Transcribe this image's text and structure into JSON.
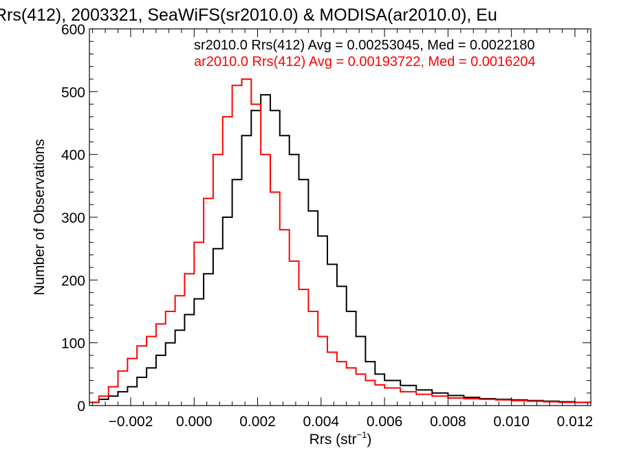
{
  "chart_data": {
    "type": "line",
    "title": "Rrs(412), 2003321, SeaWiFS(sr2010.0) & MODISA(ar2010.0), Eu",
    "xlabel_main": "Rrs (str",
    "xlabel_sup": "−1",
    "xlabel_tail": ")",
    "ylabel": "Number of Observations",
    "xlim": [
      -0.0033,
      0.0125
    ],
    "ylim": [
      0,
      600
    ],
    "xticks": [
      -0.002,
      0.0,
      0.002,
      0.004,
      0.006,
      0.008,
      0.01,
      0.012
    ],
    "xtick_labels": [
      "−0.002",
      "0.000",
      "0.002",
      "0.004",
      "0.006",
      "0.008",
      "0.010",
      "0.012"
    ],
    "yticks": [
      0,
      100,
      200,
      300,
      400,
      500,
      600
    ],
    "ytick_labels": [
      "0",
      "100",
      "200",
      "300",
      "400",
      "500",
      "600"
    ],
    "grid": false,
    "annotations": [
      {
        "text": "sr2010.0 Rrs(412) Avg = 0.00253045, Med = 0.0022180",
        "color": "#000000"
      },
      {
        "text": "ar2010.0 Rrs(412) Avg = 0.00193722, Med = 0.0016204",
        "color": "#ff0000"
      }
    ],
    "series": [
      {
        "color": "#000000",
        "x": [
          -0.0033,
          -0.003,
          -0.0027,
          -0.0024,
          -0.0021,
          -0.0018,
          -0.0015,
          -0.0012,
          -0.0009,
          -0.0006,
          -0.0003,
          0.0,
          0.0003,
          0.0006,
          0.0009,
          0.0012,
          0.0015,
          0.0018,
          0.0021,
          0.0024,
          0.0027,
          0.003,
          0.0033,
          0.0036,
          0.0039,
          0.0042,
          0.0045,
          0.0048,
          0.0051,
          0.0054,
          0.0057,
          0.006,
          0.0065,
          0.007,
          0.0075,
          0.008,
          0.0085,
          0.009,
          0.0095,
          0.01,
          0.0105,
          0.011,
          0.0115,
          0.012,
          0.0125
        ],
        "y": [
          5,
          10,
          15,
          22,
          30,
          45,
          60,
          80,
          100,
          120,
          145,
          170,
          210,
          250,
          300,
          360,
          430,
          470,
          495,
          470,
          430,
          400,
          360,
          310,
          270,
          225,
          190,
          150,
          110,
          70,
          50,
          40,
          32,
          25,
          20,
          16,
          13,
          11,
          10,
          9,
          8,
          7,
          6,
          5,
          4
        ]
      },
      {
        "color": "#ff0000",
        "x": [
          -0.0033,
          -0.003,
          -0.0027,
          -0.0024,
          -0.0021,
          -0.0018,
          -0.0015,
          -0.0012,
          -0.0009,
          -0.0006,
          -0.0003,
          0.0,
          0.0003,
          0.0006,
          0.0009,
          0.0012,
          0.0015,
          0.0018,
          0.0021,
          0.0024,
          0.0027,
          0.003,
          0.0033,
          0.0036,
          0.0039,
          0.0042,
          0.0045,
          0.0048,
          0.0051,
          0.0054,
          0.0057,
          0.006,
          0.0065,
          0.007,
          0.0075,
          0.008,
          0.0085,
          0.009,
          0.0095,
          0.01,
          0.0105,
          0.011,
          0.0115,
          0.012,
          0.0125
        ],
        "y": [
          5,
          15,
          30,
          55,
          75,
          95,
          110,
          130,
          150,
          175,
          210,
          260,
          330,
          400,
          460,
          510,
          520,
          480,
          400,
          340,
          280,
          230,
          185,
          150,
          110,
          85,
          70,
          60,
          50,
          40,
          33,
          28,
          22,
          18,
          15,
          12,
          11,
          10,
          9,
          8,
          7,
          6,
          5,
          5,
          4
        ]
      }
    ]
  }
}
